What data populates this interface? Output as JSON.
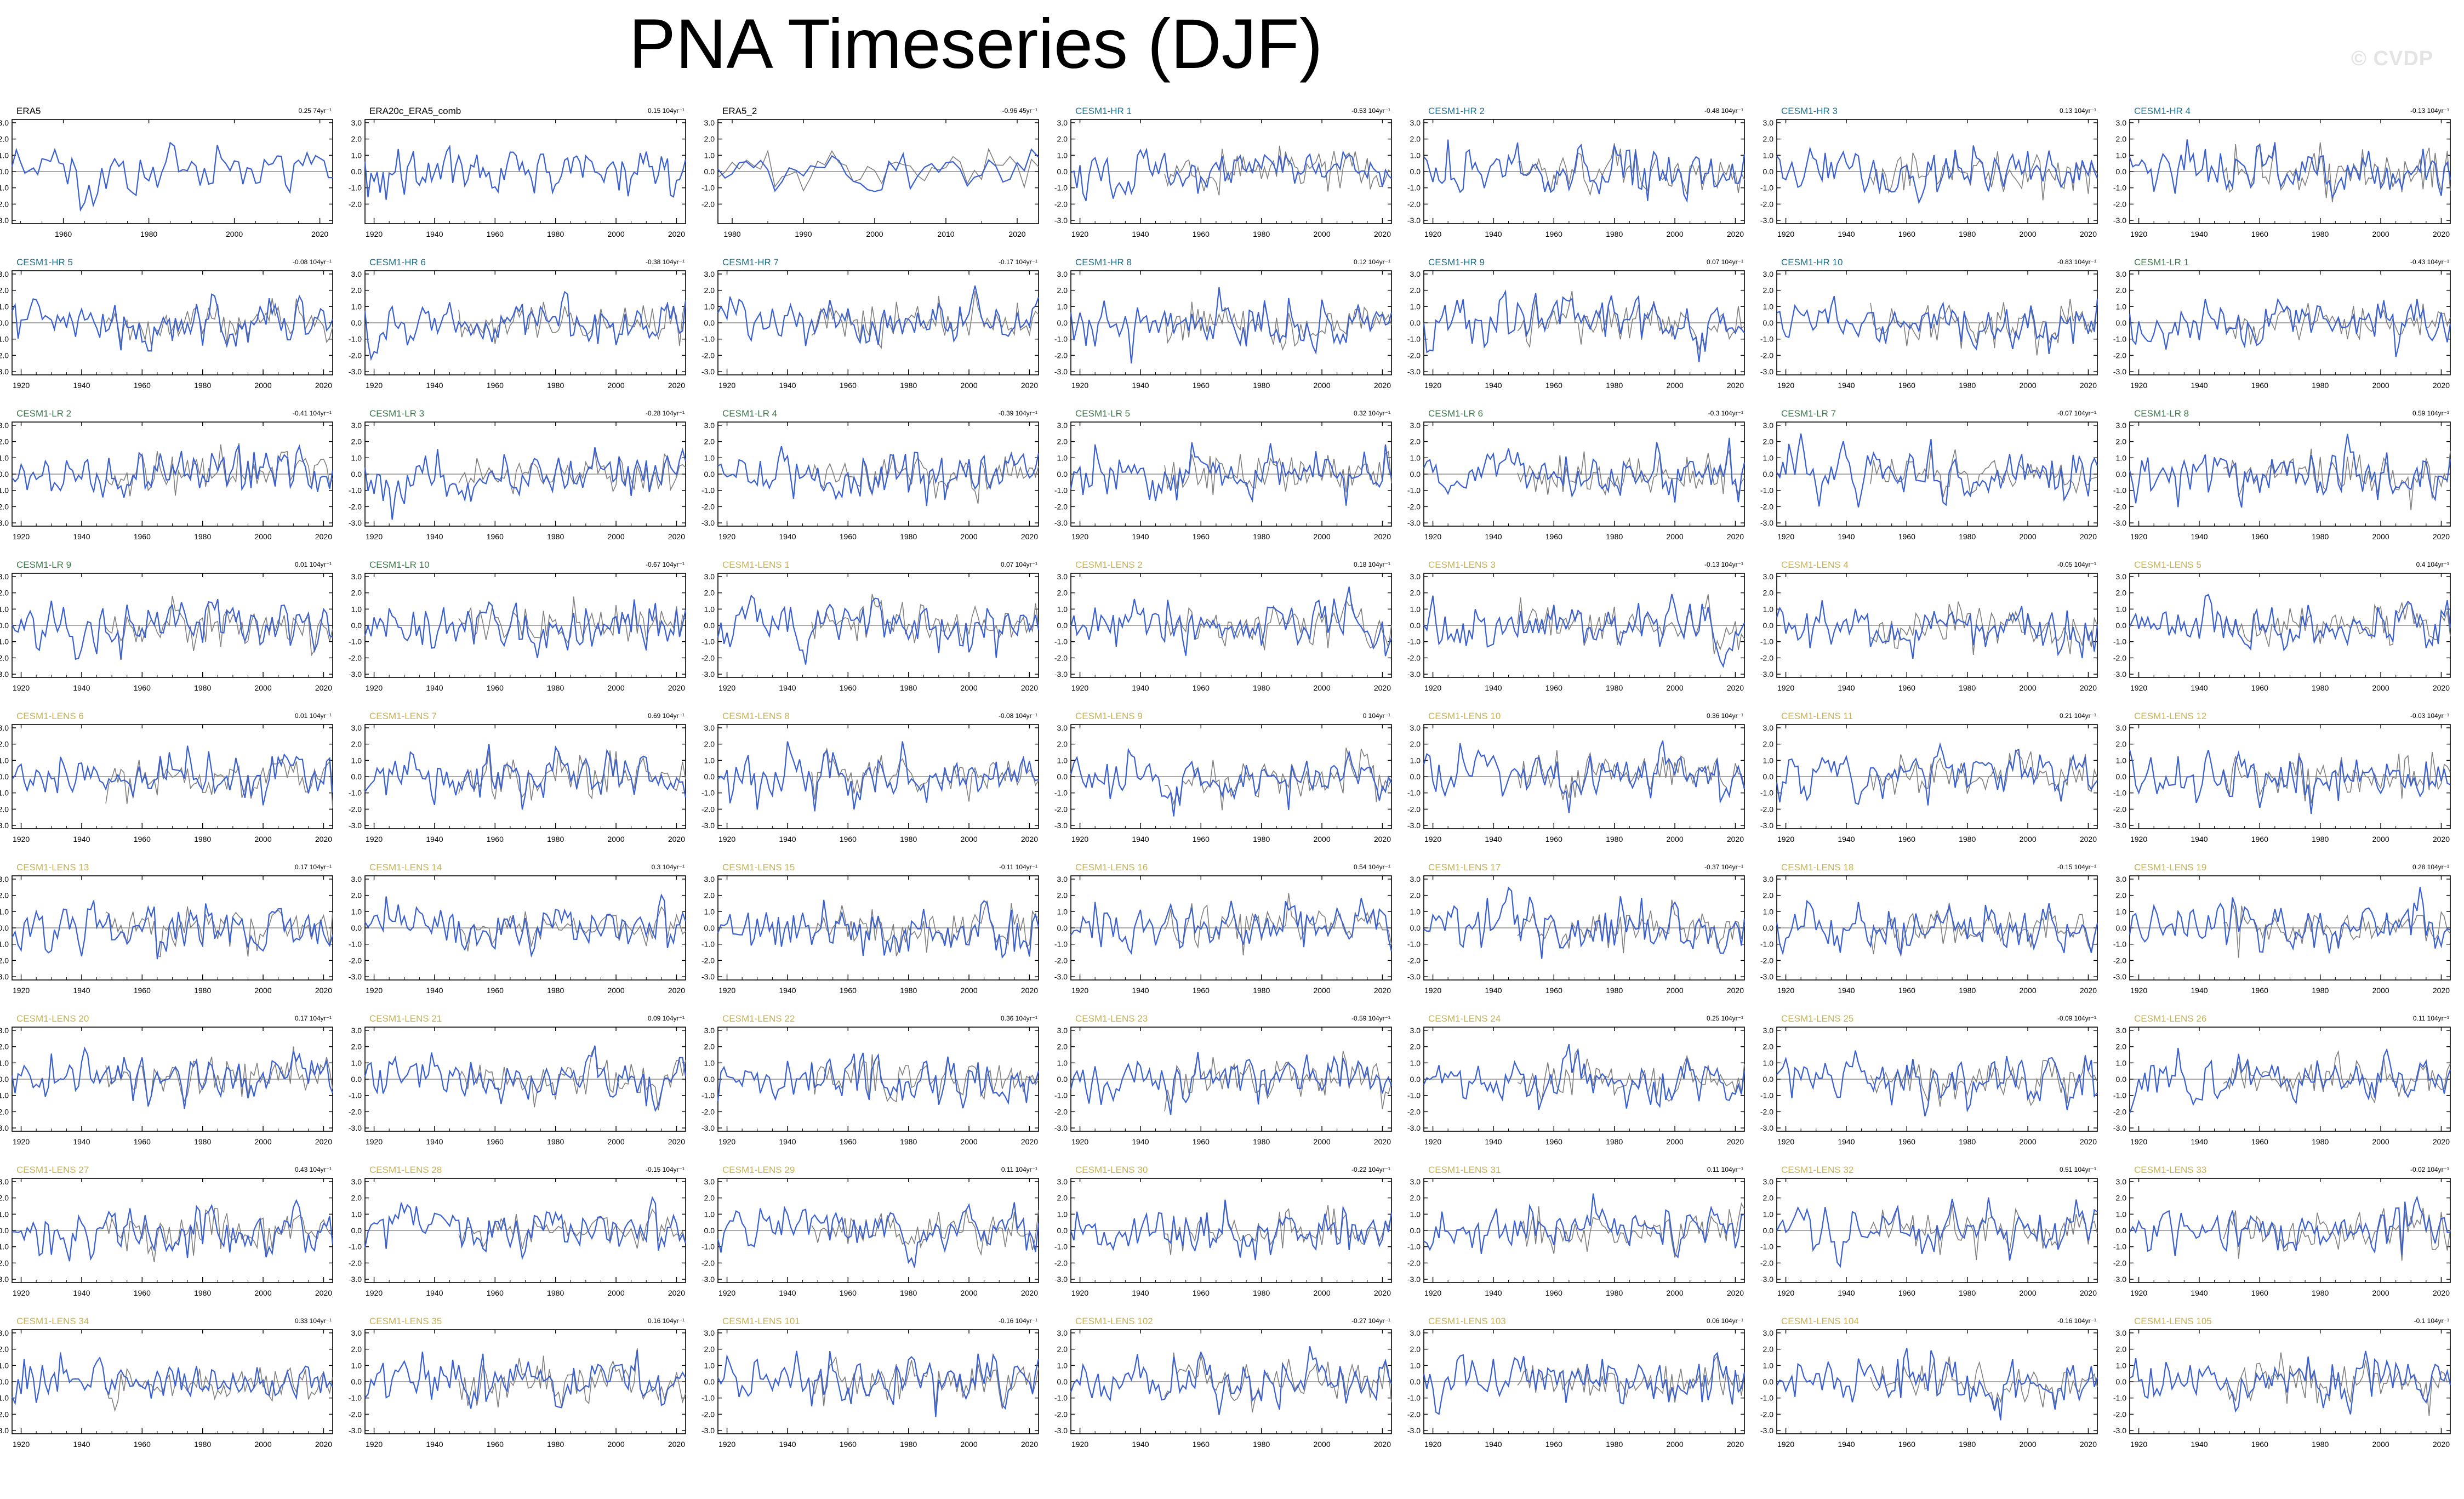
{
  "title": "PNA Timeseries (DJF)",
  "watermark": "© CVDP",
  "series_colors": {
    "observed": "#3a5fd0",
    "reference": "#7f7f7f",
    "zero_line": "#555555"
  },
  "group_colors": {
    "obs": "#000000",
    "hr": "#1f6f8b",
    "lr": "#3c7a4a",
    "lens": "#c8b253"
  },
  "chart_data": {
    "type": "line",
    "panels": [
      {
        "name": "ERA5",
        "group": "obs",
        "trend": "0.25 74yr⁻¹",
        "xrange": [
          1948,
          2023
        ],
        "xticks": [
          1960,
          1980,
          2000,
          2020
        ],
        "yticks": [
          -3.0,
          -2.0,
          -1.0,
          0.0,
          1.0,
          2.0,
          3.0
        ],
        "reference": false,
        "seed": 1
      },
      {
        "name": "ERA20c_ERA5_comb",
        "group": "obs",
        "trend": "0.15 104yr⁻¹",
        "xrange": [
          1917,
          2023
        ],
        "xticks": [
          1920,
          1940,
          1960,
          1980,
          2000,
          2020
        ],
        "yticks": [
          -2.0,
          -1.0,
          0.0,
          1.0,
          2.0,
          3.0
        ],
        "reference": false,
        "seed": 2
      },
      {
        "name": "ERA5_2",
        "group": "obs",
        "trend": "-0.96 45yr⁻¹",
        "xrange": [
          1978,
          2023
        ],
        "xticks": [
          1980,
          1990,
          2000,
          2010,
          2020
        ],
        "yticks": [
          -2.0,
          -1.0,
          0.0,
          1.0,
          2.0,
          3.0
        ],
        "reference": true,
        "seed": 3
      },
      {
        "name": "CESM1-HR 1",
        "group": "hr",
        "trend": "-0.53 104yr⁻¹",
        "seed": 4
      },
      {
        "name": "CESM1-HR 2",
        "group": "hr",
        "trend": "-0.48 104yr⁻¹",
        "seed": 5
      },
      {
        "name": "CESM1-HR 3",
        "group": "hr",
        "trend": "0.13 104yr⁻¹",
        "seed": 6
      },
      {
        "name": "CESM1-HR 4",
        "group": "hr",
        "trend": "-0.13 104yr⁻¹",
        "seed": 7
      },
      {
        "name": "CESM1-HR 5",
        "group": "hr",
        "trend": "-0.08 104yr⁻¹",
        "seed": 8
      },
      {
        "name": "CESM1-HR 6",
        "group": "hr",
        "trend": "-0.38 104yr⁻¹",
        "seed": 9
      },
      {
        "name": "CESM1-HR 7",
        "group": "hr",
        "trend": "-0.17 104yr⁻¹",
        "seed": 10
      },
      {
        "name": "CESM1-HR 8",
        "group": "hr",
        "trend": "0.12 104yr⁻¹",
        "seed": 11
      },
      {
        "name": "CESM1-HR 9",
        "group": "hr",
        "trend": "0.07 104yr⁻¹",
        "seed": 12
      },
      {
        "name": "CESM1-HR 10",
        "group": "hr",
        "trend": "-0.83 104yr⁻¹",
        "seed": 13
      },
      {
        "name": "CESM1-LR 1",
        "group": "lr",
        "trend": "-0.43 104yr⁻¹",
        "seed": 14
      },
      {
        "name": "CESM1-LR 2",
        "group": "lr",
        "trend": "-0.41 104yr⁻¹",
        "seed": 15
      },
      {
        "name": "CESM1-LR 3",
        "group": "lr",
        "trend": "-0.28 104yr⁻¹",
        "seed": 16
      },
      {
        "name": "CESM1-LR 4",
        "group": "lr",
        "trend": "-0.39 104yr⁻¹",
        "seed": 17
      },
      {
        "name": "CESM1-LR 5",
        "group": "lr",
        "trend": "0.32 104yr⁻¹",
        "seed": 18
      },
      {
        "name": "CESM1-LR 6",
        "group": "lr",
        "trend": "-0.3 104yr⁻¹",
        "seed": 19
      },
      {
        "name": "CESM1-LR 7",
        "group": "lr",
        "trend": "-0.07 104yr⁻¹",
        "seed": 20
      },
      {
        "name": "CESM1-LR 8",
        "group": "lr",
        "trend": "0.59 104yr⁻¹",
        "seed": 21
      },
      {
        "name": "CESM1-LR 9",
        "group": "lr",
        "trend": "0.01 104yr⁻¹",
        "seed": 22
      },
      {
        "name": "CESM1-LR 10",
        "group": "lr",
        "trend": "-0.67 104yr⁻¹",
        "seed": 23
      },
      {
        "name": "CESM1-LENS 1",
        "group": "lens",
        "trend": "0.07 104yr⁻¹",
        "seed": 24
      },
      {
        "name": "CESM1-LENS 2",
        "group": "lens",
        "trend": "0.18 104yr⁻¹",
        "seed": 25
      },
      {
        "name": "CESM1-LENS 3",
        "group": "lens",
        "trend": "-0.13 104yr⁻¹",
        "seed": 26
      },
      {
        "name": "CESM1-LENS 4",
        "group": "lens",
        "trend": "-0.05 104yr⁻¹",
        "seed": 27
      },
      {
        "name": "CESM1-LENS 5",
        "group": "lens",
        "trend": "0.4 104yr⁻¹",
        "seed": 28
      },
      {
        "name": "CESM1-LENS 6",
        "group": "lens",
        "trend": "0.01 104yr⁻¹",
        "seed": 29
      },
      {
        "name": "CESM1-LENS 7",
        "group": "lens",
        "trend": "0.69 104yr⁻¹",
        "seed": 30
      },
      {
        "name": "CESM1-LENS 8",
        "group": "lens",
        "trend": "-0.08 104yr⁻¹",
        "seed": 31
      },
      {
        "name": "CESM1-LENS 9",
        "group": "lens",
        "trend": "0 104yr⁻¹",
        "seed": 32
      },
      {
        "name": "CESM1-LENS 10",
        "group": "lens",
        "trend": "0.36 104yr⁻¹",
        "seed": 33
      },
      {
        "name": "CESM1-LENS 11",
        "group": "lens",
        "trend": "0.21 104yr⁻¹",
        "seed": 34
      },
      {
        "name": "CESM1-LENS 12",
        "group": "lens",
        "trend": "-0.03 104yr⁻¹",
        "seed": 35
      },
      {
        "name": "CESM1-LENS 13",
        "group": "lens",
        "trend": "0.17 104yr⁻¹",
        "seed": 36
      },
      {
        "name": "CESM1-LENS 14",
        "group": "lens",
        "trend": "0.3 104yr⁻¹",
        "seed": 37
      },
      {
        "name": "CESM1-LENS 15",
        "group": "lens",
        "trend": "-0.11 104yr⁻¹",
        "seed": 38
      },
      {
        "name": "CESM1-LENS 16",
        "group": "lens",
        "trend": "0.54 104yr⁻¹",
        "seed": 39
      },
      {
        "name": "CESM1-LENS 17",
        "group": "lens",
        "trend": "-0.37 104yr⁻¹",
        "seed": 40
      },
      {
        "name": "CESM1-LENS 18",
        "group": "lens",
        "trend": "-0.15 104yr⁻¹",
        "seed": 41
      },
      {
        "name": "CESM1-LENS 19",
        "group": "lens",
        "trend": "0.28 104yr⁻¹",
        "seed": 42
      },
      {
        "name": "CESM1-LENS 20",
        "group": "lens",
        "trend": "0.17 104yr⁻¹",
        "seed": 43
      },
      {
        "name": "CESM1-LENS 21",
        "group": "lens",
        "trend": "0.09 104yr⁻¹",
        "seed": 44
      },
      {
        "name": "CESM1-LENS 22",
        "group": "lens",
        "trend": "0.36 104yr⁻¹",
        "seed": 45
      },
      {
        "name": "CESM1-LENS 23",
        "group": "lens",
        "trend": "-0.59 104yr⁻¹",
        "seed": 46
      },
      {
        "name": "CESM1-LENS 24",
        "group": "lens",
        "trend": "0.25 104yr⁻¹",
        "seed": 47
      },
      {
        "name": "CESM1-LENS 25",
        "group": "lens",
        "trend": "-0.09 104yr⁻¹",
        "seed": 48
      },
      {
        "name": "CESM1-LENS 26",
        "group": "lens",
        "trend": "0.11 104yr⁻¹",
        "seed": 49
      },
      {
        "name": "CESM1-LENS 27",
        "group": "lens",
        "trend": "0.43 104yr⁻¹",
        "seed": 50
      },
      {
        "name": "CESM1-LENS 28",
        "group": "lens",
        "trend": "-0.15 104yr⁻¹",
        "seed": 51
      },
      {
        "name": "CESM1-LENS 29",
        "group": "lens",
        "trend": "0.11 104yr⁻¹",
        "seed": 52
      },
      {
        "name": "CESM1-LENS 30",
        "group": "lens",
        "trend": "-0.22 104yr⁻¹",
        "seed": 53
      },
      {
        "name": "CESM1-LENS 31",
        "group": "lens",
        "trend": "0.11 104yr⁻¹",
        "seed": 54
      },
      {
        "name": "CESM1-LENS 32",
        "group": "lens",
        "trend": "0.51 104yr⁻¹",
        "seed": 55
      },
      {
        "name": "CESM1-LENS 33",
        "group": "lens",
        "trend": "-0.02 104yr⁻¹",
        "seed": 56
      },
      {
        "name": "CESM1-LENS 34",
        "group": "lens",
        "trend": "0.33 104yr⁻¹",
        "seed": 57
      },
      {
        "name": "CESM1-LENS 35",
        "group": "lens",
        "trend": "0.16 104yr⁻¹",
        "seed": 58
      },
      {
        "name": "CESM1-LENS 101",
        "group": "lens",
        "trend": "-0.16 104yr⁻¹",
        "seed": 59
      },
      {
        "name": "CESM1-LENS 102",
        "group": "lens",
        "trend": "-0.27 104yr⁻¹",
        "seed": 60
      },
      {
        "name": "CESM1-LENS 103",
        "group": "lens",
        "trend": "0.06 104yr⁻¹",
        "seed": 61
      },
      {
        "name": "CESM1-LENS 104",
        "group": "lens",
        "trend": "-0.16 104yr⁻¹",
        "seed": 62
      },
      {
        "name": "CESM1-LENS 105",
        "group": "lens",
        "trend": "-0.1 104yr⁻¹",
        "seed": 63
      }
    ],
    "default_xrange": [
      1917,
      2023
    ],
    "default_xticks": [
      1920,
      1940,
      1960,
      1980,
      2000,
      2020
    ],
    "default_yticks": [
      -3.0,
      -2.0,
      -1.0,
      0.0,
      1.0,
      2.0,
      3.0
    ],
    "ylim": [
      -3.2,
      3.2
    ],
    "grid": false
  }
}
